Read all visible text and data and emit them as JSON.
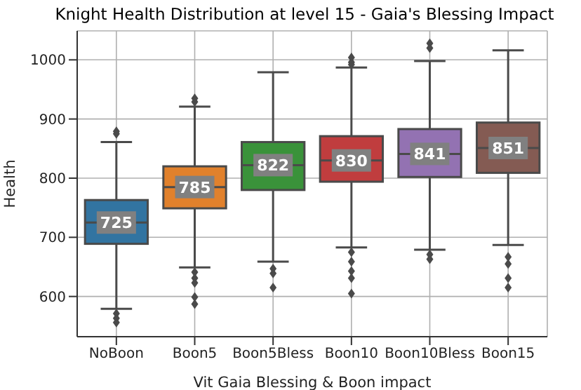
{
  "chart_data": {
    "type": "box",
    "title": "Knight Health Distribution at level 15 - Gaia's Blessing Impact",
    "xlabel": "Vit Gaia Blessing & Boon impact",
    "ylabel": "Health",
    "categories": [
      "NoBoon",
      "Boon5",
      "Boon5Bless",
      "Boon10",
      "Boon10Bless",
      "Boon15"
    ],
    "colors": [
      "#3274a1",
      "#e1812c",
      "#3a923a",
      "#c03d3e",
      "#9372b2",
      "#845b53"
    ],
    "boxes": [
      {
        "low": 579,
        "q1": 689,
        "median": 725,
        "q3": 763,
        "high": 861,
        "outliers": [
          879,
          875,
          571,
          563,
          556
        ]
      },
      {
        "low": 649,
        "q1": 749,
        "median": 785,
        "q3": 820,
        "high": 921,
        "outliers": [
          935,
          929,
          641,
          631,
          623,
          599,
          587
        ]
      },
      {
        "low": 659,
        "q1": 780,
        "median": 822,
        "q3": 861,
        "high": 979,
        "outliers": [
          647,
          639,
          615
        ]
      },
      {
        "low": 683,
        "q1": 794,
        "median": 830,
        "q3": 871,
        "high": 987,
        "outliers": [
          1004,
          996,
          992,
          675,
          659,
          643,
          631,
          605
        ]
      },
      {
        "low": 679,
        "q1": 802,
        "median": 841,
        "q3": 883,
        "high": 998,
        "outliers": [
          1028,
          1020,
          671,
          663
        ]
      },
      {
        "low": 687,
        "q1": 809,
        "median": 851,
        "q3": 894,
        "high": 1016,
        "outliers": [
          667,
          655,
          631,
          615
        ]
      }
    ],
    "value_labels": [
      "725",
      "785",
      "822",
      "830",
      "841",
      "851"
    ],
    "ylim": [
      532,
      1049
    ],
    "yticks": [
      600,
      700,
      800,
      900,
      1000
    ],
    "grid": true
  }
}
